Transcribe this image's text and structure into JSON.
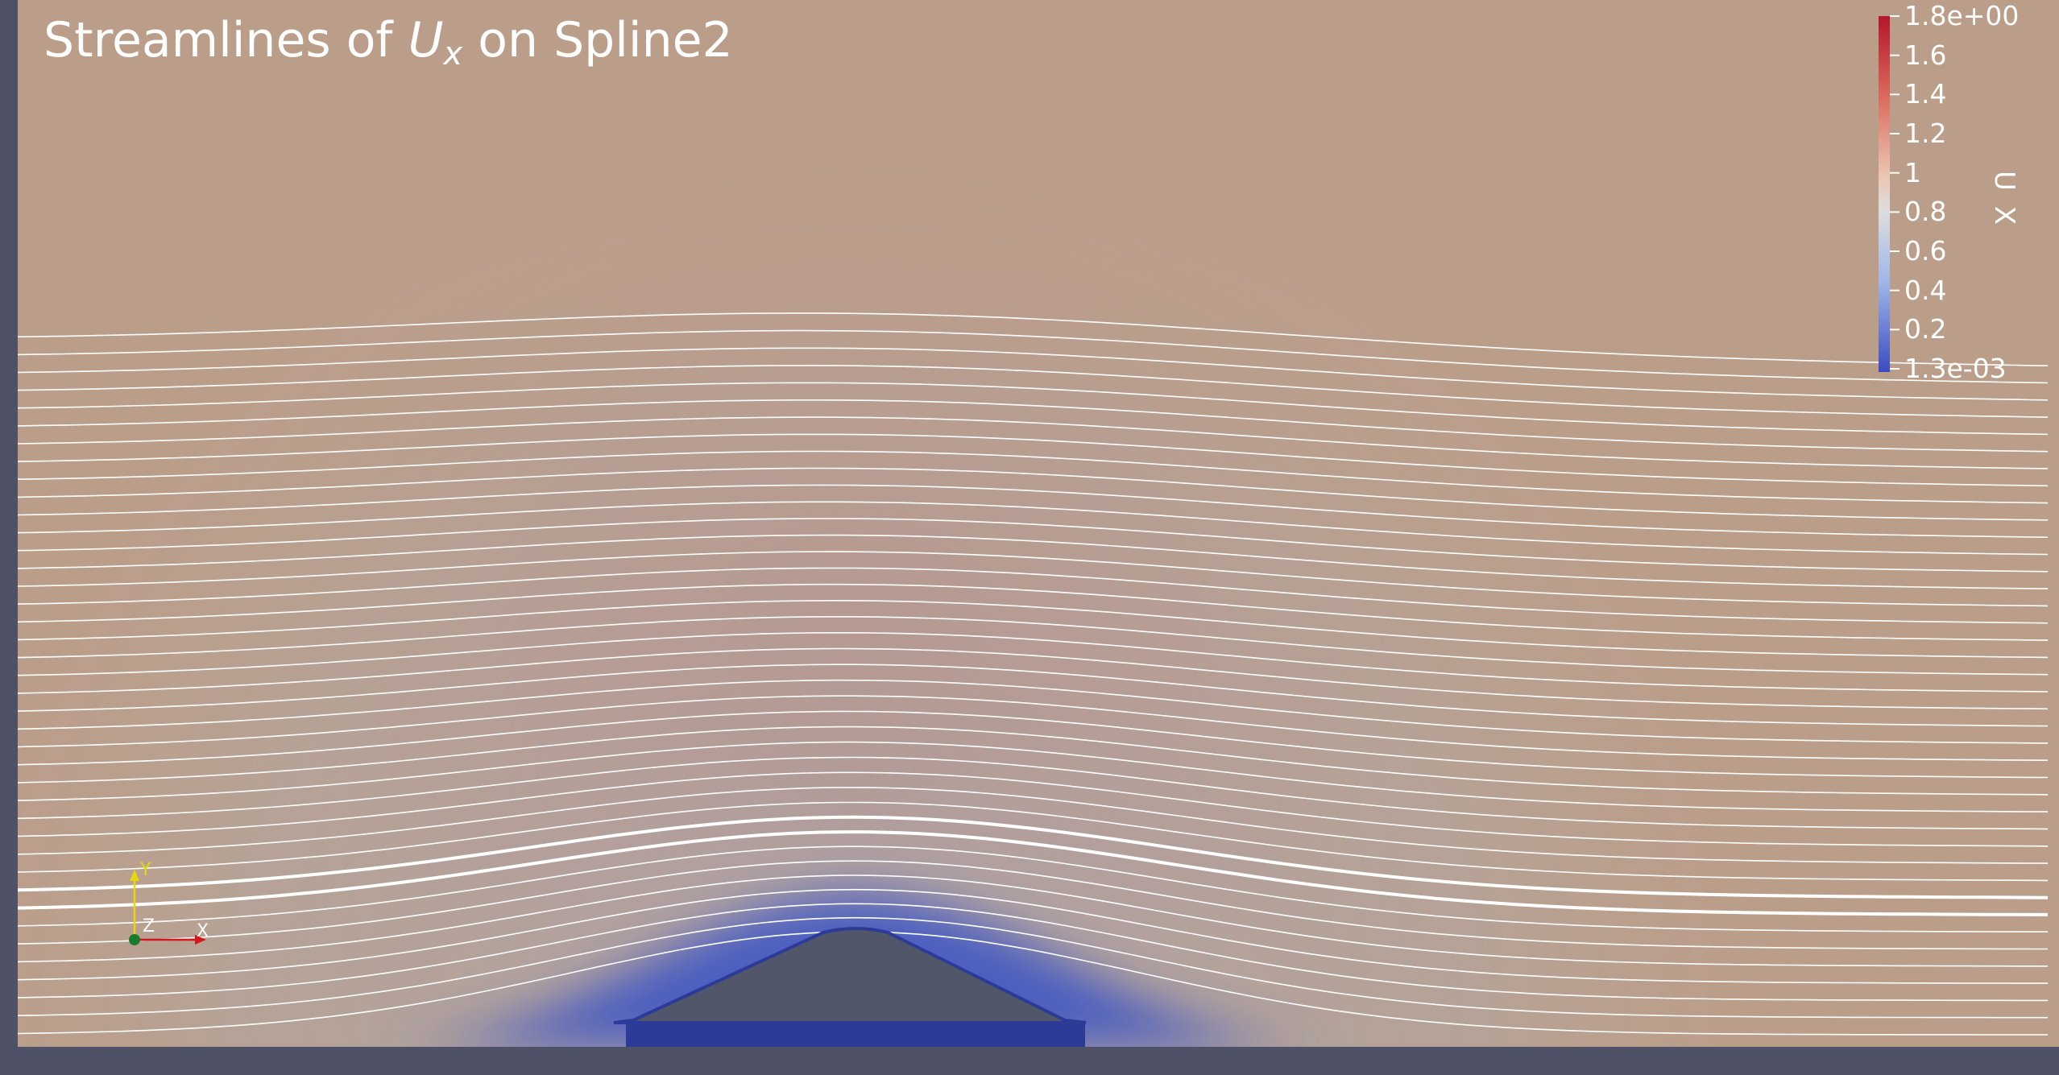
{
  "title": {
    "prefix": "Streamlines of ",
    "symbol": "U",
    "subscript": "x",
    "suffix": " on Spline2"
  },
  "colorbar": {
    "label": "U X",
    "ticks": [
      "1.8e+00",
      "1.6",
      "1.4",
      "1.2",
      "1",
      "0.8",
      "0.6",
      "0.4",
      "0.2",
      "1.3e-03"
    ],
    "colors": {
      "max": "#b4162c",
      "mid": "#dddddd",
      "min": "#3b4cc0"
    }
  },
  "axes": {
    "x": "X",
    "y": "Y",
    "z": "Z"
  },
  "colors": {
    "frame": "#4f5166",
    "background_flow": "#bb9e8a",
    "accel_region": "#c5775a",
    "wall": "#2b3b97",
    "hill": "#52566a",
    "streamline": "#ffffff",
    "axis_x": "#d6141c",
    "axis_y": "#e3d90d",
    "axis_z": "#1b7a2d"
  }
}
